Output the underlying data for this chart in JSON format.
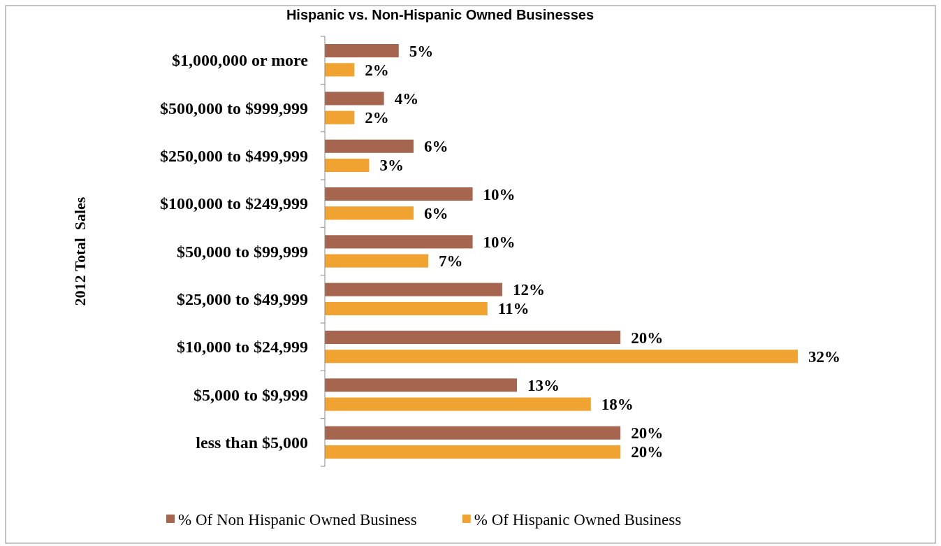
{
  "chart_data": {
    "type": "bar",
    "orientation": "horizontal",
    "title": "Hispanic vs. Non-Hispanic Owned Businesses",
    "ylabel": "2012 Total  Sales",
    "categories": [
      "$1,000,000 or more",
      "$500,000 to $999,999",
      "$250,000 to $499,999",
      "$100,000 to $249,999",
      "$50,000 to $99,999",
      "$25,000 to $49,999",
      "$10,000 to $24,999",
      "$5,000 to $9,999",
      "less than $5,000"
    ],
    "series": [
      {
        "name": "% Of Non Hispanic Owned Business",
        "color": "#a5654e",
        "values": [
          5,
          4,
          6,
          10,
          10,
          12,
          20,
          13,
          20
        ],
        "value_labels": [
          "5%",
          "4%",
          "6%",
          "10%",
          "10%",
          "12%",
          "20%",
          "13%",
          "20%"
        ]
      },
      {
        "name": "% Of Hispanic Owned Business",
        "color": "#f0a331",
        "values": [
          2,
          2,
          3,
          6,
          7,
          11,
          32,
          18,
          20
        ],
        "value_labels": [
          "2%",
          "2%",
          "3%",
          "6%",
          "7%",
          "11%",
          "32%",
          "18%",
          "20%"
        ]
      }
    ],
    "legend": "bottom",
    "grid": false
  }
}
